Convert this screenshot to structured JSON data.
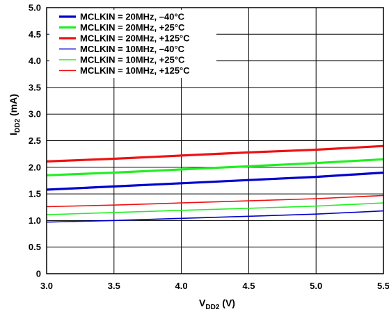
{
  "chart_data": {
    "type": "line",
    "title": "",
    "xlabel": {
      "main": "V",
      "sub": "DD2",
      "unit": " (V)"
    },
    "ylabel": {
      "main": "I",
      "sub": "DD2",
      "unit": " (mA)"
    },
    "xlim": [
      3.0,
      5.5
    ],
    "ylim": [
      0,
      5.0
    ],
    "x_ticks": [
      3.0,
      3.5,
      4.0,
      4.5,
      5.0,
      5.5
    ],
    "x_tick_labels": [
      "3.0",
      "3.5",
      "4.0",
      "4.5",
      "5.0",
      "5.5"
    ],
    "y_ticks": [
      0,
      0.5,
      1.0,
      1.5,
      2.0,
      2.5,
      3.0,
      3.5,
      4.0,
      4.5,
      5.0
    ],
    "y_tick_labels": [
      "0",
      "0.5",
      "1.0",
      "1.5",
      "2.0",
      "2.5",
      "3.0",
      "3.5",
      "4.0",
      "4.5",
      "5.0"
    ],
    "grid": true,
    "legend_position": "top-left",
    "series": [
      {
        "name": "MCLKIN = 20MHz, –40°C",
        "color": "#0000cc",
        "weight": "thick",
        "x": [
          3.0,
          3.5,
          4.0,
          4.5,
          5.0,
          5.5
        ],
        "y": [
          1.58,
          1.64,
          1.7,
          1.76,
          1.82,
          1.9
        ]
      },
      {
        "name": "MCLKIN = 20MHz, +25°C",
        "color": "#22ee22",
        "weight": "thick",
        "x": [
          3.0,
          3.5,
          4.0,
          4.5,
          5.0,
          5.5
        ],
        "y": [
          1.85,
          1.9,
          1.96,
          2.02,
          2.08,
          2.15
        ]
      },
      {
        "name": "MCLKIN = 20MHz, +125°C",
        "color": "#ee1111",
        "weight": "thick",
        "x": [
          3.0,
          3.5,
          4.0,
          4.5,
          5.0,
          5.5
        ],
        "y": [
          2.11,
          2.16,
          2.22,
          2.28,
          2.33,
          2.4
        ]
      },
      {
        "name": "MCLKIN = 10MHz, –40°C",
        "color": "#0000cc",
        "weight": "thin",
        "x": [
          3.0,
          3.5,
          4.0,
          4.5,
          5.0,
          5.5
        ],
        "y": [
          0.97,
          1.0,
          1.04,
          1.08,
          1.12,
          1.18
        ]
      },
      {
        "name": "MCLKIN = 10MHz, +25°C",
        "color": "#22ee22",
        "weight": "thin",
        "x": [
          3.0,
          3.5,
          4.0,
          4.5,
          5.0,
          5.5
        ],
        "y": [
          1.11,
          1.15,
          1.19,
          1.23,
          1.27,
          1.33
        ]
      },
      {
        "name": "MCLKIN = 10MHz, +125°C",
        "color": "#ee1111",
        "weight": "thin",
        "x": [
          3.0,
          3.5,
          4.0,
          4.5,
          5.0,
          5.5
        ],
        "y": [
          1.26,
          1.29,
          1.33,
          1.37,
          1.41,
          1.47
        ]
      }
    ]
  }
}
